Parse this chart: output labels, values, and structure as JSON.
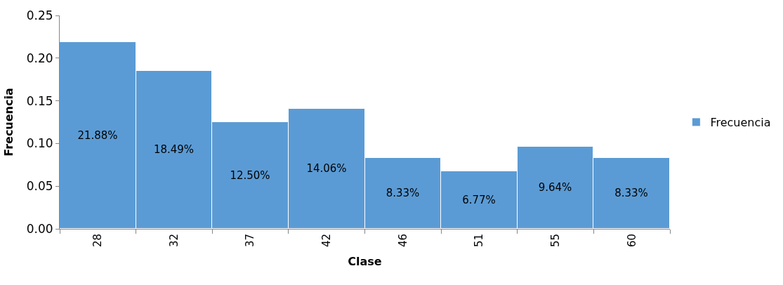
{
  "chart_data": {
    "type": "bar",
    "xlabel": "Clase",
    "ylabel": "Frecuencia",
    "categories": [
      "28",
      "32",
      "37",
      "42",
      "46",
      "51",
      "55",
      "60"
    ],
    "series": [
      {
        "name": "Frecuencia",
        "color": "#5b9bd5",
        "values": [
          0.2188,
          0.1849,
          0.125,
          0.1406,
          0.0833,
          0.0677,
          0.0964,
          0.0833
        ],
        "value_labels": [
          "21.88%",
          "18.49%",
          "12.50%",
          "14.06%",
          "8.33%",
          "6.77%",
          "9.64%",
          "8.33%"
        ]
      }
    ],
    "ylim": [
      0,
      0.25
    ],
    "yticks": [
      {
        "value": 0,
        "label": "0.00"
      },
      {
        "value": 0.05,
        "label": "0.05"
      },
      {
        "value": 0.1,
        "label": "0.10"
      },
      {
        "value": 0.15,
        "label": "0.15"
      },
      {
        "value": 0.2,
        "label": "0.20"
      },
      {
        "value": 0.25,
        "label": "0.25"
      }
    ],
    "legend": "right"
  }
}
